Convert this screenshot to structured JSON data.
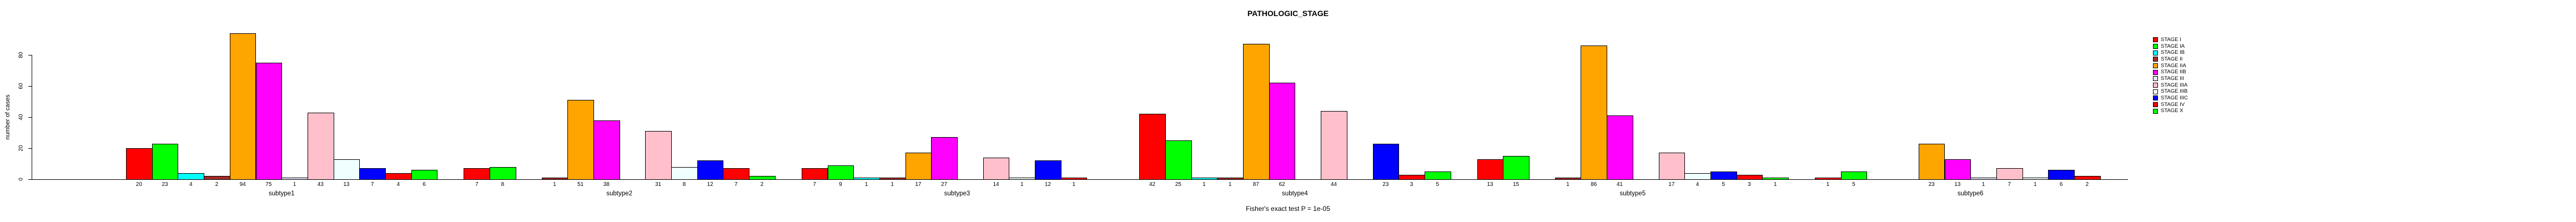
{
  "title": "PATHOLOGIC_STAGE",
  "footnote": "Fisher's exact test P = 1e-05",
  "chart_data": {
    "type": "bar",
    "title": "PATHOLOGIC_STAGE",
    "ylabel": "number of cases",
    "xlabel": "",
    "yticks": [
      0,
      20,
      40,
      60,
      80
    ],
    "ylim": [
      0,
      94
    ],
    "grid": false,
    "legend_position": "right",
    "categories": [
      "STAGE I",
      "STAGE IA",
      "STAGE IB",
      "STAGE II",
      "STAGE IIA",
      "STAGE IIB",
      "STAGE III",
      "STAGE IIIA",
      "STAGE IIIB",
      "STAGE IIIC",
      "STAGE IV",
      "STAGE X"
    ],
    "colors": [
      "#FF0000",
      "#00FF00",
      "#00FFFF",
      "#A52A2A",
      "#FFA500",
      "#FF00FF",
      "#E6E6FA",
      "#FFC0CB",
      "#F0FFFF",
      "#0000FF",
      "#FF0000",
      "#00FF00"
    ],
    "series": [
      {
        "name": "subtype1",
        "values": [
          20,
          23,
          4,
          2,
          94,
          75,
          1,
          43,
          13,
          7,
          4,
          6
        ]
      },
      {
        "name": "subtype2",
        "values": [
          7,
          8,
          0,
          1,
          51,
          38,
          0,
          31,
          8,
          12,
          7,
          2
        ]
      },
      {
        "name": "subtype3",
        "values": [
          7,
          9,
          1,
          1,
          17,
          27,
          0,
          14,
          1,
          12,
          1,
          0
        ]
      },
      {
        "name": "subtype4",
        "values": [
          42,
          25,
          1,
          1,
          87,
          62,
          0,
          44,
          0,
          23,
          3,
          5
        ]
      },
      {
        "name": "subtype5",
        "values": [
          13,
          15,
          0,
          1,
          86,
          41,
          0,
          17,
          4,
          5,
          3,
          1
        ]
      },
      {
        "name": "subtype6",
        "values": [
          1,
          5,
          0,
          0,
          23,
          13,
          1,
          7,
          1,
          6,
          2,
          0
        ]
      }
    ],
    "footnote": "Fisher's exact test P = 1e-05"
  }
}
